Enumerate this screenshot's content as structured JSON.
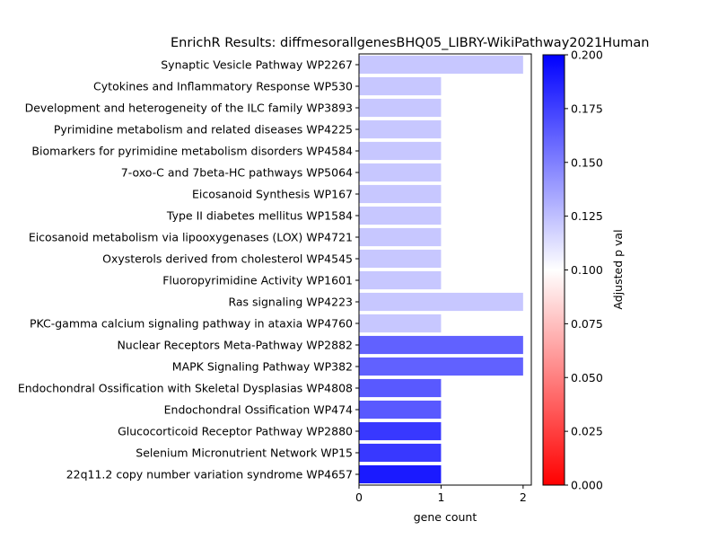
{
  "chart_data": {
    "type": "bar",
    "orientation": "horizontal",
    "title": "EnrichR Results: diffmesorallgenesBHQ05_LIBRY-WikiPathway2021Human",
    "xlabel": "gene count",
    "ylabel": "",
    "xlim": [
      0,
      2.1
    ],
    "xticks": [
      0,
      1,
      2
    ],
    "categories": [
      "Synaptic Vesicle Pathway WP2267",
      "Cytokines and Inflammatory Response WP530",
      "Development and heterogeneity of the ILC family WP3893",
      "Pyrimidine metabolism and related diseases WP4225",
      "Biomarkers for pyrimidine metabolism disorders WP4584",
      "7-oxo-C and 7beta-HC pathways WP5064",
      "Eicosanoid Synthesis WP167",
      "Type II diabetes mellitus WP1584",
      "Eicosanoid metabolism via lipooxygenases (LOX) WP4721",
      "Oxysterols derived from cholesterol WP4545",
      "Fluoropyrimidine Activity WP1601",
      "Ras signaling WP4223",
      "PKC-gamma calcium signaling pathway in ataxia WP4760",
      "Nuclear Receptors Meta-Pathway WP2882",
      "MAPK Signaling Pathway WP382",
      "Endochondral Ossification with Skeletal Dysplasias WP4808",
      "Endochondral Ossification WP474",
      "Glucocorticoid Receptor Pathway WP2880",
      "Selenium Micronutrient Network WP15",
      "22q11.2 copy number variation syndrome WP4657"
    ],
    "values": [
      2,
      1,
      1,
      1,
      1,
      1,
      1,
      1,
      1,
      1,
      1,
      2,
      1,
      2,
      2,
      1,
      1,
      1,
      1,
      1
    ],
    "adjusted_p": [
      0.122,
      0.122,
      0.122,
      0.122,
      0.122,
      0.122,
      0.122,
      0.122,
      0.122,
      0.122,
      0.122,
      0.122,
      0.122,
      0.162,
      0.162,
      0.165,
      0.165,
      0.178,
      0.178,
      0.19
    ],
    "colorbar": {
      "label": "Adjusted p val",
      "range": [
        0,
        0.2
      ],
      "ticks": [
        "0.000",
        "0.025",
        "0.050",
        "0.075",
        "0.100",
        "0.125",
        "0.150",
        "0.175",
        "0.200"
      ],
      "colormap": [
        "#ff0000",
        "#ffffff",
        "#0000ff"
      ]
    }
  }
}
